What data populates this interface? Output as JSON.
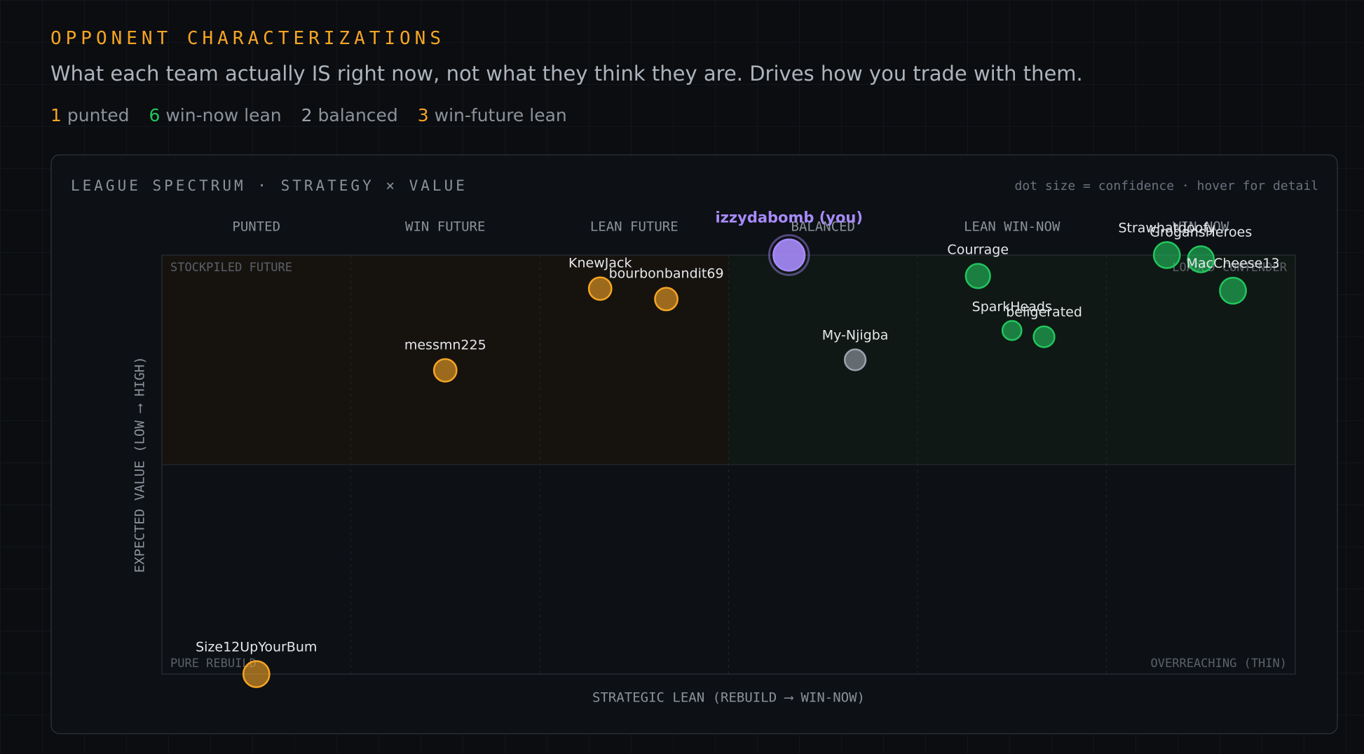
{
  "header": {
    "title": "OPPONENT CHARACTERIZATIONS",
    "subtitle": "What each team actually IS right now, not what they think they are. Drives how you trade with them.",
    "summary": [
      {
        "count": 1,
        "label": "punted",
        "color": "#f5a524"
      },
      {
        "count": 6,
        "label": "win-now lean",
        "color": "#22c55e"
      },
      {
        "count": 2,
        "label": "balanced",
        "color": "#9ca3af"
      },
      {
        "count": 3,
        "label": "win-future lean",
        "color": "#f5a524"
      }
    ]
  },
  "chart_data": {
    "type": "scatter",
    "title": "LEAGUE SPECTRUM · STRATEGY × VALUE",
    "note": "dot size = confidence · hover for detail",
    "columns": [
      "PUNTED",
      "WIN FUTURE",
      "LEAN FUTURE",
      "BALANCED",
      "LEAN WIN-NOW",
      "WIN NOW"
    ],
    "regions": {
      "top_left": "STOCKPILED FUTURE",
      "top_right": "LOADED CONTENDER",
      "bottom_left": "PURE REBUILD",
      "bottom_right": "OVERREACHING (THIN)"
    },
    "xlabel": "STRATEGIC LEAN (REBUILD ⟶ WIN-NOW)",
    "ylabel": "EXPECTED VALUE (LOW ⟶ HIGH)",
    "xlim": [
      0,
      6
    ],
    "ylim": [
      0,
      10
    ],
    "points": [
      {
        "name": "izzydabomb (you)",
        "x": 3.32,
        "y": 10.0,
        "size": 18,
        "color": "#a78bfa",
        "you": true
      },
      {
        "name": "KnewJack",
        "x": 2.32,
        "y": 9.2,
        "size": 13,
        "color": "#f5a524"
      },
      {
        "name": "bourbonbandit69",
        "x": 2.67,
        "y": 8.95,
        "size": 13,
        "color": "#f5a524"
      },
      {
        "name": "messmn225",
        "x": 1.5,
        "y": 7.25,
        "size": 13,
        "color": "#f5a524"
      },
      {
        "name": "Size12UpYourBum",
        "x": 0.5,
        "y": 0.0,
        "size": 15,
        "color": "#f5a524"
      },
      {
        "name": "My-Njigba",
        "x": 3.67,
        "y": 7.5,
        "size": 12,
        "color": "#9ca3af"
      },
      {
        "name": "Courrage",
        "x": 4.32,
        "y": 9.5,
        "size": 14,
        "color": "#22c55e"
      },
      {
        "name": "SparkHeads",
        "x": 4.5,
        "y": 8.2,
        "size": 11,
        "color": "#22c55e"
      },
      {
        "name": "beligerated",
        "x": 4.67,
        "y": 8.05,
        "size": 12,
        "color": "#22c55e"
      },
      {
        "name": "Strawhatdoofy",
        "x": 5.32,
        "y": 10.0,
        "size": 15,
        "color": "#22c55e"
      },
      {
        "name": "GrogansHeroes",
        "x": 5.5,
        "y": 9.9,
        "size": 15,
        "color": "#22c55e"
      },
      {
        "name": "MacCheese13",
        "x": 5.67,
        "y": 9.15,
        "size": 15,
        "color": "#22c55e"
      }
    ]
  }
}
